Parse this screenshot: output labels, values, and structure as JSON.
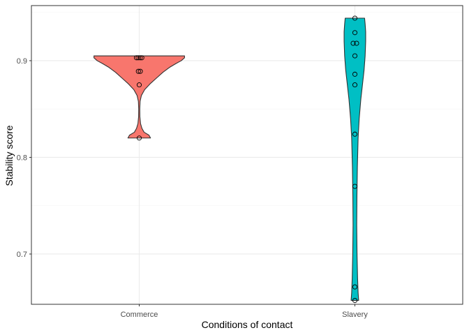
{
  "chart_data": {
    "type": "violin",
    "xlabel": "Conditions of contact",
    "ylabel": "Stability score",
    "categories": [
      "Commerce",
      "Slavery"
    ],
    "ylim": [
      0.648,
      0.957
    ],
    "yticks": [
      0.7,
      0.8,
      0.9
    ],
    "ytick_labels": [
      "0.7",
      "0.8",
      "0.9"
    ],
    "grid": true,
    "background": "#ffffff",
    "panel_border": "#333333",
    "grid_major_color": "#ebebeb",
    "grid_minor_color": "#f5f5f5",
    "series": [
      {
        "category": "Commerce",
        "color": "#F8766D",
        "points": [
          {
            "x": -0.013,
            "y": 0.903
          },
          {
            "x": -0.005,
            "y": 0.903
          },
          {
            "x": 0.004,
            "y": 0.903
          },
          {
            "x": 0.012,
            "y": 0.903
          },
          {
            "x": -0.004,
            "y": 0.889
          },
          {
            "x": 0.005,
            "y": 0.889
          },
          {
            "x": 0.0,
            "y": 0.875
          },
          {
            "x": 0.0,
            "y": 0.82
          }
        ],
        "violin_profile": [
          {
            "y": 0.82,
            "w": 0.105
          },
          {
            "y": 0.823,
            "w": 0.09
          },
          {
            "y": 0.826,
            "w": 0.045
          },
          {
            "y": 0.83,
            "w": 0.025
          },
          {
            "y": 0.835,
            "w": 0.012
          },
          {
            "y": 0.842,
            "w": 0.006
          },
          {
            "y": 0.85,
            "w": 0.005
          },
          {
            "y": 0.858,
            "w": 0.008
          },
          {
            "y": 0.864,
            "w": 0.02
          },
          {
            "y": 0.87,
            "w": 0.05
          },
          {
            "y": 0.876,
            "w": 0.1
          },
          {
            "y": 0.882,
            "w": 0.16
          },
          {
            "y": 0.888,
            "w": 0.22
          },
          {
            "y": 0.893,
            "w": 0.28
          },
          {
            "y": 0.897,
            "w": 0.34
          },
          {
            "y": 0.9,
            "w": 0.39
          },
          {
            "y": 0.903,
            "w": 0.42
          },
          {
            "y": 0.905,
            "w": 0.42
          }
        ]
      },
      {
        "category": "Slavery",
        "color": "#00BFC4",
        "points": [
          {
            "x": 0.0,
            "y": 0.944
          },
          {
            "x": 0.0,
            "y": 0.929
          },
          {
            "x": -0.008,
            "y": 0.918
          },
          {
            "x": 0.008,
            "y": 0.918
          },
          {
            "x": 0.0,
            "y": 0.905
          },
          {
            "x": 0.0,
            "y": 0.886
          },
          {
            "x": 0.0,
            "y": 0.875
          },
          {
            "x": 0.0,
            "y": 0.824
          },
          {
            "x": 0.0,
            "y": 0.77
          },
          {
            "x": 0.0,
            "y": 0.666
          },
          {
            "x": 0.0,
            "y": 0.652
          }
        ],
        "violin_profile": [
          {
            "y": 0.652,
            "w": 0.035
          },
          {
            "y": 0.66,
            "w": 0.03
          },
          {
            "y": 0.675,
            "w": 0.025
          },
          {
            "y": 0.7,
            "w": 0.02
          },
          {
            "y": 0.73,
            "w": 0.017
          },
          {
            "y": 0.76,
            "w": 0.019
          },
          {
            "y": 0.79,
            "w": 0.023
          },
          {
            "y": 0.82,
            "w": 0.03
          },
          {
            "y": 0.84,
            "w": 0.04
          },
          {
            "y": 0.86,
            "w": 0.055
          },
          {
            "y": 0.875,
            "w": 0.07
          },
          {
            "y": 0.89,
            "w": 0.085
          },
          {
            "y": 0.905,
            "w": 0.095
          },
          {
            "y": 0.92,
            "w": 0.1
          },
          {
            "y": 0.93,
            "w": 0.1
          },
          {
            "y": 0.938,
            "w": 0.095
          },
          {
            "y": 0.944,
            "w": 0.09
          }
        ]
      }
    ]
  }
}
